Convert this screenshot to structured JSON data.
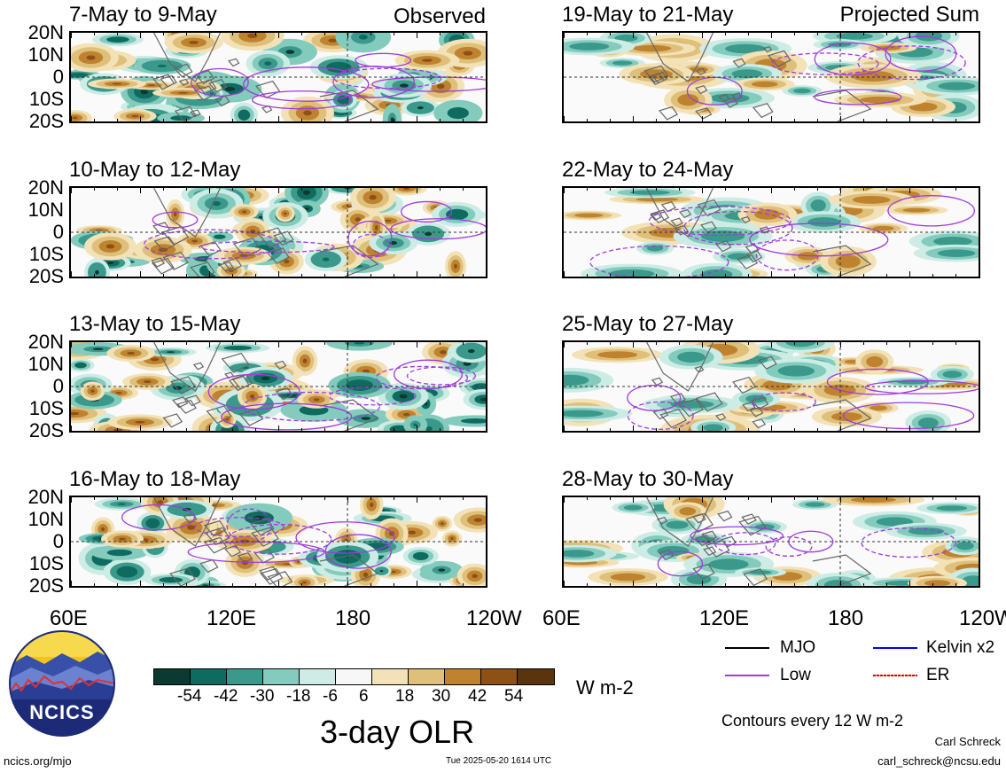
{
  "panels_left": [
    {
      "title": "7-May to 9-May",
      "corner": "Observed"
    },
    {
      "title": "10-May to 12-May",
      "corner": ""
    },
    {
      "title": "13-May to 15-May",
      "corner": ""
    },
    {
      "title": "16-May to 18-May",
      "corner": ""
    }
  ],
  "panels_right": [
    {
      "title": "19-May to 21-May",
      "corner": "Projected Sum"
    },
    {
      "title": "22-May to 24-May",
      "corner": ""
    },
    {
      "title": "25-May to 27-May",
      "corner": ""
    },
    {
      "title": "28-May to 30-May",
      "corner": ""
    }
  ],
  "lat_labels": [
    "20N",
    "10N",
    "0",
    "10S",
    "20S"
  ],
  "lon_labels": [
    "60E",
    "120E",
    "180",
    "120W"
  ],
  "colorbar": {
    "colors": [
      "#0b3b30",
      "#0f6b60",
      "#3b998c",
      "#83cbbd",
      "#cdece5",
      "#f7f7f7",
      "#f3e2b8",
      "#dfc07a",
      "#bf8330",
      "#8d5115",
      "#5a340c"
    ],
    "labels": [
      "-54",
      "-42",
      "-30",
      "-18",
      "-6",
      "6",
      "18",
      "30",
      "42",
      "54"
    ],
    "units": "W m-2",
    "title": "3-day OLR"
  },
  "legend": {
    "items": [
      {
        "label": "MJO",
        "color": "#000000"
      },
      {
        "label": "Kelvin x2",
        "color": "#0000ff"
      },
      {
        "label": "Low",
        "color": "#a13bdb"
      },
      {
        "label": "ER",
        "color": "#e00000"
      }
    ],
    "contours_note": "Contours every 12 W m-2"
  },
  "logo": {
    "text": "NCICS"
  },
  "footer": {
    "website": "ncics.org/mjo",
    "timestamp": "Tue 2025-05-20 1614 UTC",
    "author": "Carl Schreck",
    "email": "carl_schreck@ncsu.edu"
  }
}
